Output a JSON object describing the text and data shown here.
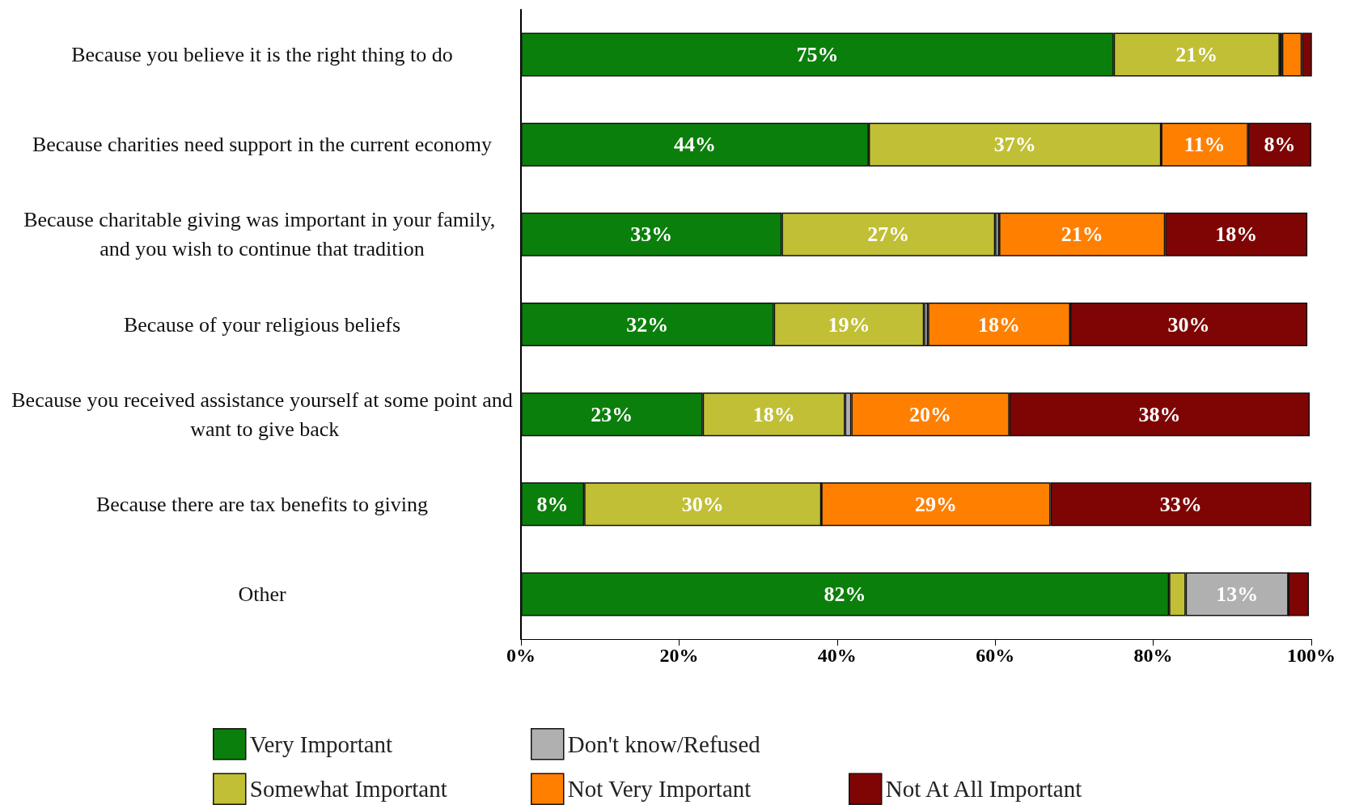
{
  "chart_data": {
    "type": "bar",
    "orientation": "horizontal",
    "stacked": true,
    "grid": false,
    "legend": "bottom",
    "categories": [
      "Because you believe it is the right thing to do",
      "Because charities need support in the current economy",
      "Because charitable giving was important in your family, and you wish to continue that tradition",
      "Because of your religious beliefs",
      "Because you received assistance yourself at some point and want to give back",
      "Because there are tax benefits to giving",
      "Other"
    ],
    "xlim": [
      0,
      100
    ],
    "xticks": [
      {
        "value": 0,
        "label": "0%"
      },
      {
        "value": 20,
        "label": "20%"
      },
      {
        "value": 40,
        "label": "40%"
      },
      {
        "value": 60,
        "label": "60%"
      },
      {
        "value": 80,
        "label": "80%"
      },
      {
        "value": 100,
        "label": "100%"
      }
    ],
    "series": [
      {
        "name": "Very Important",
        "color": "#0b7f0b",
        "values": [
          75,
          44,
          33,
          32,
          23,
          8,
          82
        ],
        "value_labels": [
          "75%",
          "44%",
          "33%",
          "32%",
          "23%",
          "8%",
          "82%"
        ]
      },
      {
        "name": "Somewhat Important",
        "color": "#c1bf35",
        "values": [
          21,
          37,
          27,
          19,
          18,
          30,
          2.1
        ],
        "value_labels": [
          "21%",
          "37%",
          "27%",
          "19%",
          "18%",
          "30%",
          null
        ]
      },
      {
        "name": "Don't know/Refused",
        "color": "#b0b0b0",
        "values": [
          0.3,
          0,
          0.5,
          0.5,
          0.8,
          0,
          13
        ],
        "value_labels": [
          null,
          null,
          null,
          null,
          null,
          null,
          "13%"
        ]
      },
      {
        "name": "Not Very Important",
        "color": "#ff8000",
        "values": [
          2.5,
          11,
          21,
          18,
          20,
          29,
          0
        ],
        "value_labels": [
          null,
          "11%",
          "21%",
          "18%",
          "20%",
          "29%",
          null
        ]
      },
      {
        "name": "Not At All Important",
        "color": "#7f0505",
        "values": [
          1.3,
          8,
          18,
          30,
          38,
          33,
          2.6
        ],
        "value_labels": [
          null,
          "8%",
          "18%",
          "30%",
          "38%",
          "33%",
          null
        ]
      }
    ]
  }
}
